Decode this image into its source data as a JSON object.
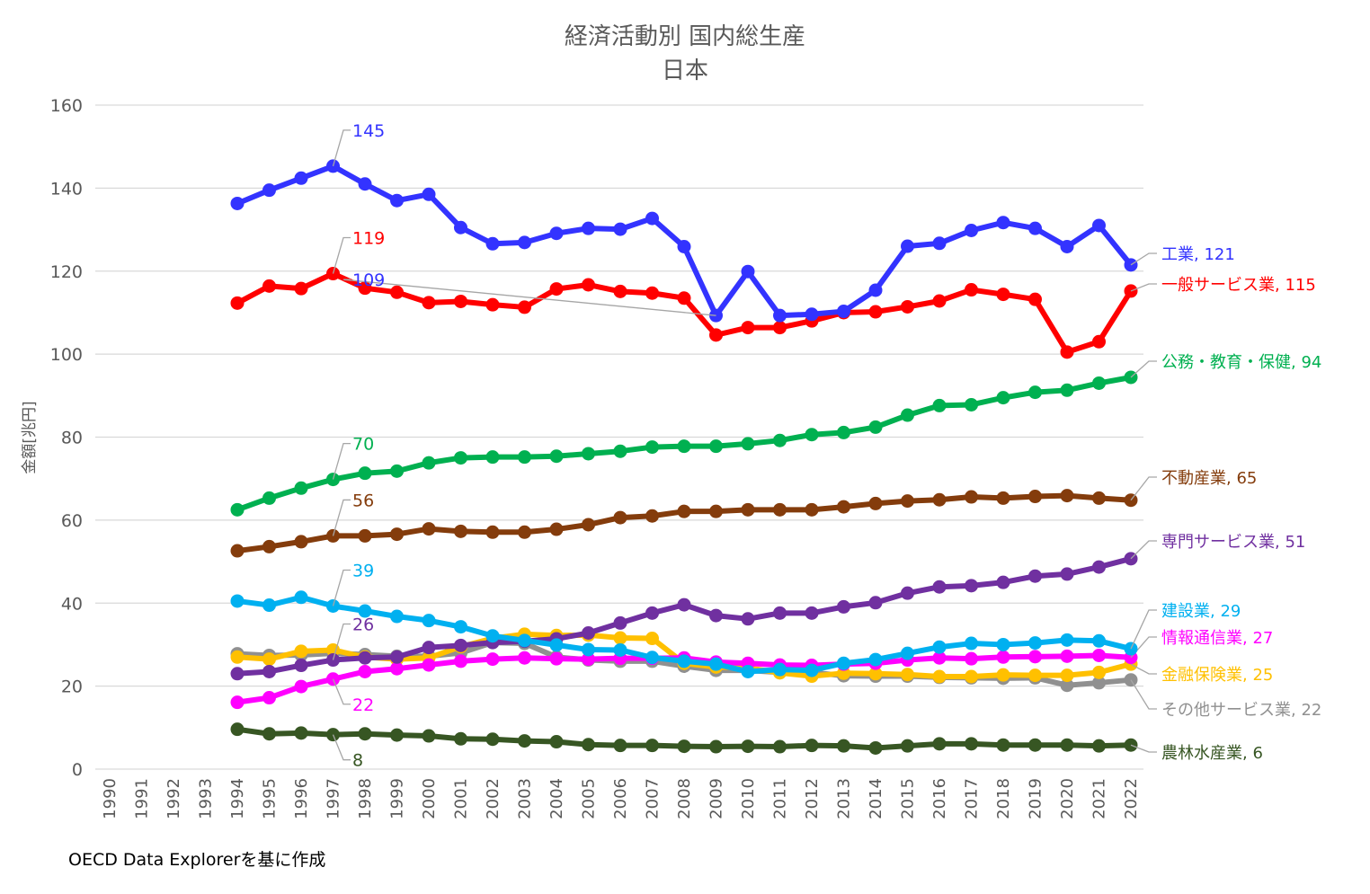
{
  "chart_data": {
    "type": "line",
    "title": "経済活動別 国内総生産",
    "subtitle": "日本",
    "ylabel": "金額[兆円]",
    "xlabel": "",
    "ylim": [
      0,
      160
    ],
    "yticks": [
      0,
      20,
      40,
      60,
      80,
      100,
      120,
      140,
      160
    ],
    "grid": true,
    "legend": "none",
    "x": [
      "1990",
      "1991",
      "1992",
      "1993",
      "1994",
      "1995",
      "1996",
      "1997",
      "1998",
      "1999",
      "2000",
      "2001",
      "2002",
      "2003",
      "2004",
      "2005",
      "2006",
      "2007",
      "2008",
      "2009",
      "2010",
      "2011",
      "2012",
      "2013",
      "2014",
      "2015",
      "2016",
      "2017",
      "2018",
      "2019",
      "2020",
      "2021",
      "2022"
    ],
    "series": [
      {
        "name": "その他サービス業",
        "color": "#909090",
        "end_label": "その他サービス業, 22",
        "values": [
          null,
          null,
          null,
          null,
          27.8,
          27.4,
          27.5,
          27.9,
          27.6,
          27.2,
          27.2,
          28.0,
          30.5,
          30.3,
          27.0,
          26.3,
          26.0,
          26.0,
          24.8,
          23.8,
          23.8,
          23.3,
          23.3,
          22.5,
          22.4,
          22.4,
          22.1,
          22.0,
          21.9,
          22.0,
          20.2,
          20.8,
          21.5
        ],
        "annotations": []
      },
      {
        "name": "農林水産業",
        "color": "#375623",
        "end_label": "農林水産業, 6",
        "values": [
          null,
          null,
          null,
          null,
          9.6,
          8.5,
          8.7,
          8.3,
          8.5,
          8.2,
          8.0,
          7.3,
          7.2,
          6.8,
          6.6,
          5.9,
          5.7,
          5.7,
          5.5,
          5.4,
          5.5,
          5.4,
          5.7,
          5.6,
          5.1,
          5.6,
          6.1,
          6.1,
          5.8,
          5.8,
          5.8,
          5.6,
          5.8
        ],
        "annotations": [
          {
            "year": "1997",
            "text": "8"
          }
        ]
      },
      {
        "name": "金融保険業",
        "color": "#ffc000",
        "end_label": "金融保険業, 25",
        "values": [
          null,
          null,
          null,
          null,
          27.0,
          26.5,
          28.4,
          28.7,
          27.0,
          26.5,
          26.8,
          29.5,
          31.5,
          32.5,
          32.2,
          32.3,
          31.6,
          31.5,
          25.5,
          24.6,
          24.4,
          23.2,
          22.4,
          23.1,
          23.0,
          22.8,
          22.3,
          22.3,
          22.7,
          22.6,
          22.6,
          23.3,
          25.3
        ],
        "annotations": []
      },
      {
        "name": "情報通信業",
        "color": "#ff00ff",
        "end_label": "情報通信業, 27",
        "values": [
          null,
          null,
          null,
          null,
          16.1,
          17.2,
          19.9,
          21.7,
          23.5,
          24.2,
          25.1,
          26.0,
          26.5,
          26.8,
          26.6,
          26.5,
          26.7,
          26.7,
          26.8,
          25.8,
          25.5,
          25.1,
          25.0,
          25.3,
          25.5,
          26.3,
          26.8,
          26.6,
          27.0,
          27.1,
          27.2,
          27.4,
          26.9
        ],
        "annotations": [
          {
            "year": "1997",
            "text": "22"
          }
        ]
      },
      {
        "name": "専門サービス業",
        "color": "#7030a0",
        "end_label": "専門サービス業, 51",
        "values": [
          null,
          null,
          null,
          null,
          23.0,
          23.5,
          25.0,
          26.3,
          26.8,
          27.0,
          29.3,
          29.8,
          30.5,
          30.8,
          31.4,
          32.8,
          35.2,
          37.6,
          39.6,
          37.0,
          36.2,
          37.6,
          37.6,
          39.1,
          40.1,
          42.4,
          43.9,
          44.2,
          45.0,
          46.5,
          47.0,
          48.7,
          50.7
        ],
        "annotations": [
          {
            "year": "1997",
            "text": "26"
          }
        ]
      },
      {
        "name": "建設業",
        "color": "#00b0f0",
        "end_label": "建設業, 29",
        "values": [
          null,
          null,
          null,
          null,
          40.5,
          39.5,
          41.4,
          39.3,
          38.1,
          36.8,
          35.8,
          34.3,
          32.1,
          31.0,
          29.9,
          28.8,
          28.7,
          26.9,
          26.0,
          25.3,
          23.5,
          24.0,
          23.8,
          25.5,
          26.4,
          27.9,
          29.4,
          30.3,
          30.0,
          30.4,
          31.1,
          30.9,
          29.0
        ],
        "annotations": [
          {
            "year": "1997",
            "text": "39"
          }
        ]
      },
      {
        "name": "不動産業",
        "color": "#843c0c",
        "end_label": "不動産業, 65",
        "values": [
          null,
          null,
          null,
          null,
          52.6,
          53.6,
          54.8,
          56.2,
          56.2,
          56.6,
          57.9,
          57.3,
          57.1,
          57.1,
          57.8,
          58.9,
          60.6,
          61.0,
          62.1,
          62.1,
          62.5,
          62.5,
          62.5,
          63.2,
          64.0,
          64.6,
          64.9,
          65.6,
          65.3,
          65.7,
          65.9,
          65.3,
          64.8
        ],
        "annotations": [
          {
            "year": "1997",
            "text": "56"
          }
        ]
      },
      {
        "name": "公務・教育・保健",
        "color": "#00b050",
        "end_label": "公務・教育・保健, 94",
        "values": [
          null,
          null,
          null,
          null,
          62.5,
          65.3,
          67.7,
          69.8,
          71.3,
          71.8,
          73.8,
          75.0,
          75.2,
          75.2,
          75.4,
          76.0,
          76.6,
          77.6,
          77.8,
          77.8,
          78.4,
          79.2,
          80.6,
          81.1,
          82.4,
          85.3,
          87.6,
          87.8,
          89.5,
          90.8,
          91.3,
          93.0,
          94.4
        ],
        "annotations": [
          {
            "year": "1997",
            "text": "70"
          }
        ]
      },
      {
        "name": "一般サービス業",
        "color": "#ff0000",
        "end_label": "一般サービス業, 115",
        "values": [
          null,
          null,
          null,
          null,
          112.3,
          116.4,
          115.8,
          119.4,
          115.9,
          114.9,
          112.4,
          112.7,
          111.9,
          111.3,
          115.7,
          116.7,
          115.1,
          114.7,
          113.5,
          104.6,
          106.4,
          106.4,
          108.0,
          110.0,
          110.2,
          111.4,
          112.8,
          115.5,
          114.4,
          113.2,
          100.5,
          103.0,
          115.2
        ],
        "annotations": [
          {
            "year": "1997",
            "text": "119"
          }
        ]
      },
      {
        "name": "工業",
        "color": "#3333ff",
        "end_label": "工業, 121",
        "values": [
          null,
          null,
          null,
          null,
          136.3,
          139.5,
          142.4,
          145.3,
          141.0,
          137.0,
          138.5,
          130.5,
          126.6,
          126.9,
          129.1,
          130.3,
          130.1,
          132.7,
          125.9,
          109.3,
          119.9,
          109.3,
          109.6,
          110.3,
          115.4,
          126.0,
          126.7,
          129.8,
          131.7,
          130.3,
          125.9,
          131.0,
          121.5
        ],
        "annotations": [
          {
            "year": "1997",
            "text": "145"
          },
          {
            "year": "2009",
            "text": "109"
          }
        ]
      }
    ]
  },
  "footer": {
    "source": "OECD Data Explorerを基に作成"
  }
}
